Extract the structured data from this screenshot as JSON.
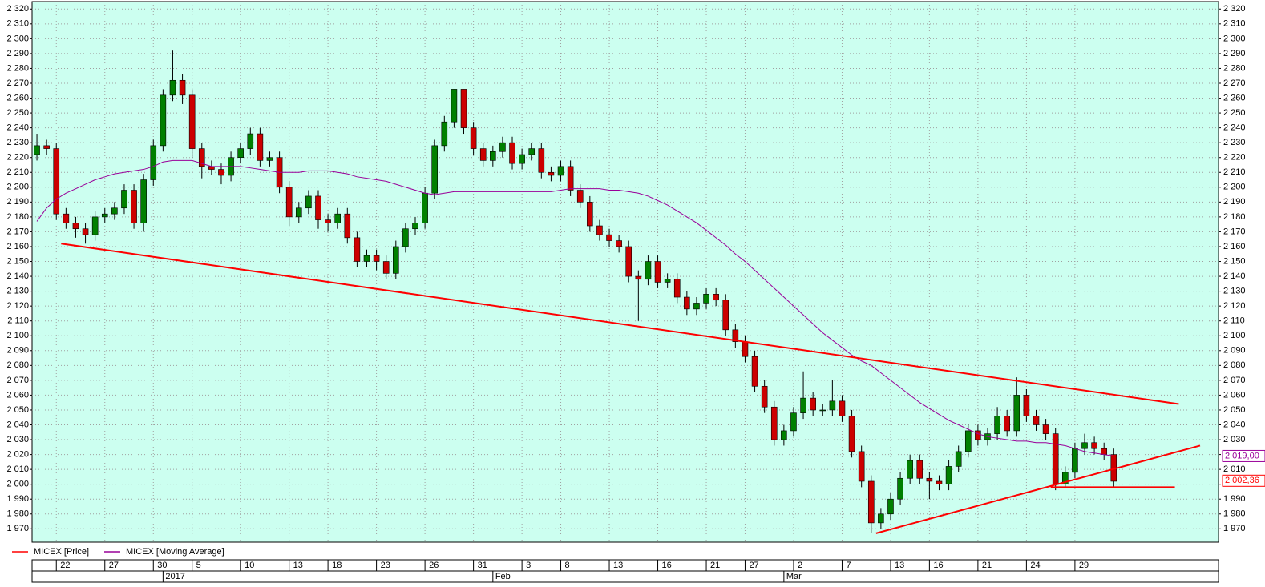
{
  "chart_data": {
    "type": "candlestick",
    "ylim": [
      1961,
      2325
    ],
    "yticks": [
      {
        "value": 1970,
        "label": "1 970"
      },
      {
        "value": 1980,
        "label": "1 980"
      },
      {
        "value": 1990,
        "label": "1 990"
      },
      {
        "value": 2000,
        "label": "2 000"
      },
      {
        "value": 2010,
        "label": "2 010"
      },
      {
        "value": 2020,
        "label": "2 020"
      },
      {
        "value": 2030,
        "label": "2 030"
      },
      {
        "value": 2040,
        "label": "2 040"
      },
      {
        "value": 2050,
        "label": "2 050"
      },
      {
        "value": 2060,
        "label": "2 060"
      },
      {
        "value": 2070,
        "label": "2 070"
      },
      {
        "value": 2080,
        "label": "2 080"
      },
      {
        "value": 2090,
        "label": "2 090"
      },
      {
        "value": 2100,
        "label": "2 100"
      },
      {
        "value": 2110,
        "label": "2 110"
      },
      {
        "value": 2120,
        "label": "2 120"
      },
      {
        "value": 2130,
        "label": "2 130"
      },
      {
        "value": 2140,
        "label": "2 140"
      },
      {
        "value": 2150,
        "label": "2 150"
      },
      {
        "value": 2160,
        "label": "2 160"
      },
      {
        "value": 2170,
        "label": "2 170"
      },
      {
        "value": 2180,
        "label": "2 180"
      },
      {
        "value": 2190,
        "label": "2 190"
      },
      {
        "value": 2200,
        "label": "2 200"
      },
      {
        "value": 2210,
        "label": "2 210"
      },
      {
        "value": 2220,
        "label": "2 220"
      },
      {
        "value": 2230,
        "label": "2 230"
      },
      {
        "value": 2240,
        "label": "2 240"
      },
      {
        "value": 2250,
        "label": "2 250"
      },
      {
        "value": 2260,
        "label": "2 260"
      },
      {
        "value": 2270,
        "label": "2 270"
      },
      {
        "value": 2280,
        "label": "2 280"
      },
      {
        "value": 2290,
        "label": "2 290"
      },
      {
        "value": 2300,
        "label": "2 300"
      },
      {
        "value": 2310,
        "label": "2 310"
      },
      {
        "value": 2320,
        "label": "2 320"
      }
    ],
    "xlim": [
      -0.5,
      121.8
    ],
    "grid": true,
    "categories": [
      null,
      null,
      "22",
      null,
      null,
      null,
      null,
      "27",
      null,
      null,
      null,
      null,
      "30",
      null,
      null,
      null,
      "5",
      null,
      null,
      null,
      null,
      "10",
      null,
      null,
      null,
      null,
      "13",
      null,
      null,
      null,
      "18",
      null,
      null,
      null,
      null,
      "23",
      null,
      null,
      null,
      null,
      "26",
      null,
      null,
      null,
      null,
      "31",
      null,
      null,
      null,
      null,
      "3",
      null,
      null,
      null,
      "8",
      null,
      null,
      null,
      null,
      "13",
      null,
      null,
      null,
      null,
      "16",
      null,
      null,
      null,
      null,
      "21",
      null,
      null,
      null,
      "27",
      null,
      null,
      null,
      null,
      "2",
      null,
      null,
      null,
      null,
      "7",
      null,
      null,
      null,
      null,
      "13",
      null,
      null,
      null,
      "16",
      null,
      null,
      null,
      null,
      "21",
      null,
      null,
      null,
      null,
      "24",
      null,
      null,
      null,
      null,
      "29",
      null,
      null,
      null,
      null
    ],
    "period_labels": [
      null,
      null,
      null,
      null,
      null,
      null,
      null,
      null,
      null,
      null,
      null,
      null,
      null,
      "2017",
      null,
      null,
      null,
      null,
      null,
      null,
      null,
      null,
      null,
      null,
      null,
      null,
      null,
      null,
      null,
      null,
      null,
      null,
      null,
      null,
      null,
      null,
      null,
      null,
      null,
      null,
      null,
      null,
      null,
      null,
      null,
      null,
      null,
      "Feb",
      null,
      null,
      null,
      null,
      null,
      null,
      null,
      null,
      null,
      null,
      null,
      null,
      null,
      null,
      null,
      null,
      null,
      null,
      null,
      null,
      null,
      null,
      null,
      null,
      null,
      null,
      null,
      null,
      null,
      "Mar",
      null,
      null,
      null,
      null,
      null,
      null,
      null,
      null,
      null,
      null,
      null,
      null,
      null,
      null,
      null,
      null,
      null,
      null,
      null,
      null,
      null,
      null,
      null,
      null,
      null,
      null,
      null,
      null,
      null,
      null,
      null,
      null,
      null,
      null
    ],
    "series": [
      {
        "name": "MICEX [Price]",
        "color": "#ff0000",
        "up_color": "#008000",
        "down_color": "#cc0000",
        "open": [
          2222,
          2228,
          2226,
          2182,
          2176,
          2172,
          2168,
          2180,
          2182,
          2186,
          2198,
          2176,
          2205,
          2228,
          2262,
          2272,
          2262,
          2226,
          2214,
          2212,
          2208,
          2220,
          2226,
          2236,
          2218,
          2220,
          2200,
          2180,
          2186,
          2194,
          2178,
          2176,
          2182,
          2166,
          2150,
          2154,
          2150,
          2142,
          2160,
          2172,
          2176,
          2196,
          2228,
          2244,
          2266,
          2240,
          2226,
          2218,
          2224,
          2230,
          2216,
          2222,
          2226,
          2210,
          2208,
          2214,
          2198,
          2190,
          2174,
          2168,
          2164,
          2160,
          2140,
          2138,
          2150,
          2136,
          2138,
          2126,
          2118,
          2122,
          2128,
          2124,
          2104,
          2096,
          2086,
          2066,
          2052,
          2030,
          2036,
          2048,
          2058,
          2050,
          2050,
          2056,
          2046,
          2022,
          2002,
          1974,
          1980,
          1990,
          2004,
          2016,
          2004,
          2002,
          2000,
          2012,
          2022,
          2036,
          2030,
          2034,
          2046,
          2036,
          2060,
          2046,
          2040,
          2034,
          2000,
          2008,
          2024,
          2028,
          2024,
          2020
        ],
        "high": [
          2236,
          2232,
          2230,
          2186,
          2180,
          2176,
          2184,
          2186,
          2190,
          2202,
          2202,
          2209,
          2232,
          2266,
          2292,
          2276,
          2266,
          2230,
          2218,
          2216,
          2224,
          2230,
          2240,
          2240,
          2224,
          2224,
          2204,
          2190,
          2198,
          2198,
          2182,
          2186,
          2186,
          2170,
          2158,
          2158,
          2154,
          2164,
          2176,
          2180,
          2200,
          2232,
          2248,
          2266,
          2266,
          2244,
          2230,
          2228,
          2234,
          2234,
          2226,
          2230,
          2230,
          2214,
          2218,
          2218,
          2202,
          2194,
          2178,
          2172,
          2168,
          2164,
          2144,
          2154,
          2154,
          2142,
          2142,
          2130,
          2126,
          2132,
          2132,
          2128,
          2108,
          2100,
          2090,
          2070,
          2056,
          2040,
          2052,
          2076,
          2062,
          2054,
          2070,
          2060,
          2050,
          2026,
          2006,
          1984,
          1994,
          2008,
          2020,
          2020,
          2008,
          2006,
          2016,
          2026,
          2040,
          2040,
          2038,
          2052,
          2050,
          2072,
          2064,
          2050,
          2044,
          2038,
          2012,
          2028,
          2034,
          2032,
          2028,
          2024
        ],
        "low": [
          2218,
          2222,
          2178,
          2172,
          2166,
          2162,
          2164,
          2176,
          2178,
          2182,
          2172,
          2170,
          2201,
          2224,
          2258,
          2256,
          2220,
          2206,
          2208,
          2202,
          2204,
          2216,
          2222,
          2214,
          2214,
          2196,
          2174,
          2176,
          2182,
          2172,
          2170,
          2172,
          2162,
          2146,
          2146,
          2144,
          2138,
          2138,
          2156,
          2168,
          2172,
          2192,
          2224,
          2240,
          2236,
          2222,
          2214,
          2214,
          2220,
          2212,
          2212,
          2218,
          2206,
          2204,
          2204,
          2194,
          2186,
          2170,
          2164,
          2160,
          2156,
          2136,
          2110,
          2134,
          2132,
          2132,
          2122,
          2114,
          2114,
          2118,
          2120,
          2100,
          2092,
          2082,
          2062,
          2048,
          2026,
          2026,
          2032,
          2044,
          2046,
          2046,
          2046,
          2042,
          2018,
          1998,
          1967,
          1970,
          1976,
          1986,
          2000,
          2000,
          1990,
          1996,
          1996,
          2008,
          2018,
          2026,
          2026,
          2030,
          2032,
          2032,
          2042,
          2036,
          2030,
          1996,
          1998,
          2004,
          2020,
          2020,
          2016,
          1998
        ],
        "close": [
          2228,
          2226,
          2182,
          2176,
          2172,
          2168,
          2180,
          2182,
          2186,
          2198,
          2176,
          2205,
          2228,
          2262,
          2272,
          2262,
          2226,
          2214,
          2212,
          2208,
          2220,
          2226,
          2236,
          2218,
          2220,
          2200,
          2180,
          2186,
          2194,
          2178,
          2176,
          2182,
          2166,
          2150,
          2154,
          2150,
          2142,
          2160,
          2172,
          2176,
          2196,
          2228,
          2244,
          2266,
          2240,
          2226,
          2218,
          2224,
          2230,
          2216,
          2222,
          2226,
          2210,
          2208,
          2214,
          2198,
          2190,
          2174,
          2168,
          2164,
          2160,
          2140,
          2138,
          2150,
          2136,
          2138,
          2126,
          2118,
          2122,
          2128,
          2124,
          2104,
          2096,
          2086,
          2066,
          2052,
          2030,
          2036,
          2048,
          2058,
          2050,
          2050,
          2056,
          2046,
          2022,
          2002,
          1974,
          1980,
          1990,
          2004,
          2016,
          2004,
          2002,
          2000,
          2012,
          2022,
          2036,
          2030,
          2034,
          2046,
          2036,
          2060,
          2046,
          2040,
          2034,
          2000,
          2008,
          2024,
          2028,
          2024,
          2020,
          2002
        ],
        "last_label": {
          "value": 2002.36,
          "label": "2 002,36"
        }
      },
      {
        "name": "MICEX [Moving Average]",
        "color": "#990099",
        "values": [
          2177,
          2186,
          2192,
          2196,
          2199,
          2202,
          2205,
          2207,
          2209,
          2210,
          2211,
          2212,
          2214,
          2217,
          2218,
          2218,
          2218,
          2216,
          2214,
          2214,
          2214,
          2214,
          2213,
          2212,
          2211,
          2210,
          2210,
          2210,
          2211,
          2211,
          2211,
          2210,
          2209,
          2207,
          2206,
          2205,
          2204,
          2202,
          2200,
          2198,
          2196,
          2195,
          2196,
          2197,
          2197,
          2197,
          2197,
          2197,
          2197,
          2197,
          2197,
          2197,
          2197,
          2197,
          2198,
          2199,
          2199,
          2199,
          2199,
          2198,
          2198,
          2197,
          2196,
          2194,
          2191,
          2188,
          2184,
          2180,
          2176,
          2171,
          2166,
          2161,
          2155,
          2150,
          2144,
          2138,
          2132,
          2126,
          2120,
          2114,
          2108,
          2102,
          2097,
          2092,
          2087,
          2083,
          2080,
          2075,
          2070,
          2065,
          2060,
          2055,
          2051,
          2047,
          2043,
          2040,
          2037,
          2034,
          2032,
          2031,
          2030,
          2029,
          2029,
          2028,
          2028,
          2027,
          2026,
          2024,
          2022,
          2021,
          2020,
          2019
        ],
        "last_label": {
          "value": 2019,
          "label": "2 019,00"
        }
      }
    ],
    "trendlines": [
      {
        "color": "#ff0000",
        "start": [
          2.5,
          2162
        ],
        "end": [
          117.7,
          2054
        ]
      },
      {
        "color": "#ff0000",
        "start": [
          86.5,
          1967
        ],
        "end": [
          119.9,
          2026
        ]
      },
      {
        "color": "#ff0000",
        "start": [
          104.5,
          1998
        ],
        "end": [
          117.3,
          1998
        ]
      }
    ]
  }
}
